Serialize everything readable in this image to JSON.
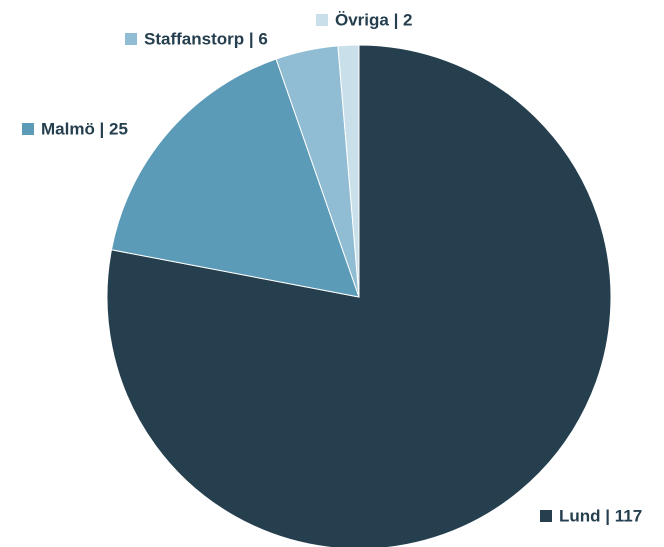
{
  "chart_data": {
    "type": "pie",
    "categories": [
      "Lund",
      "Malmö",
      "Staffanstorp",
      "Övriga"
    ],
    "values": [
      117,
      25,
      6,
      2
    ],
    "labels": [
      "Lund | 117",
      "Malmö | 25",
      "Staffanstorp | 6",
      "Övriga | 2"
    ],
    "colors": [
      "#253f4f",
      "#5b9bb8",
      "#90bdd3",
      "#c9e0ea"
    ]
  }
}
